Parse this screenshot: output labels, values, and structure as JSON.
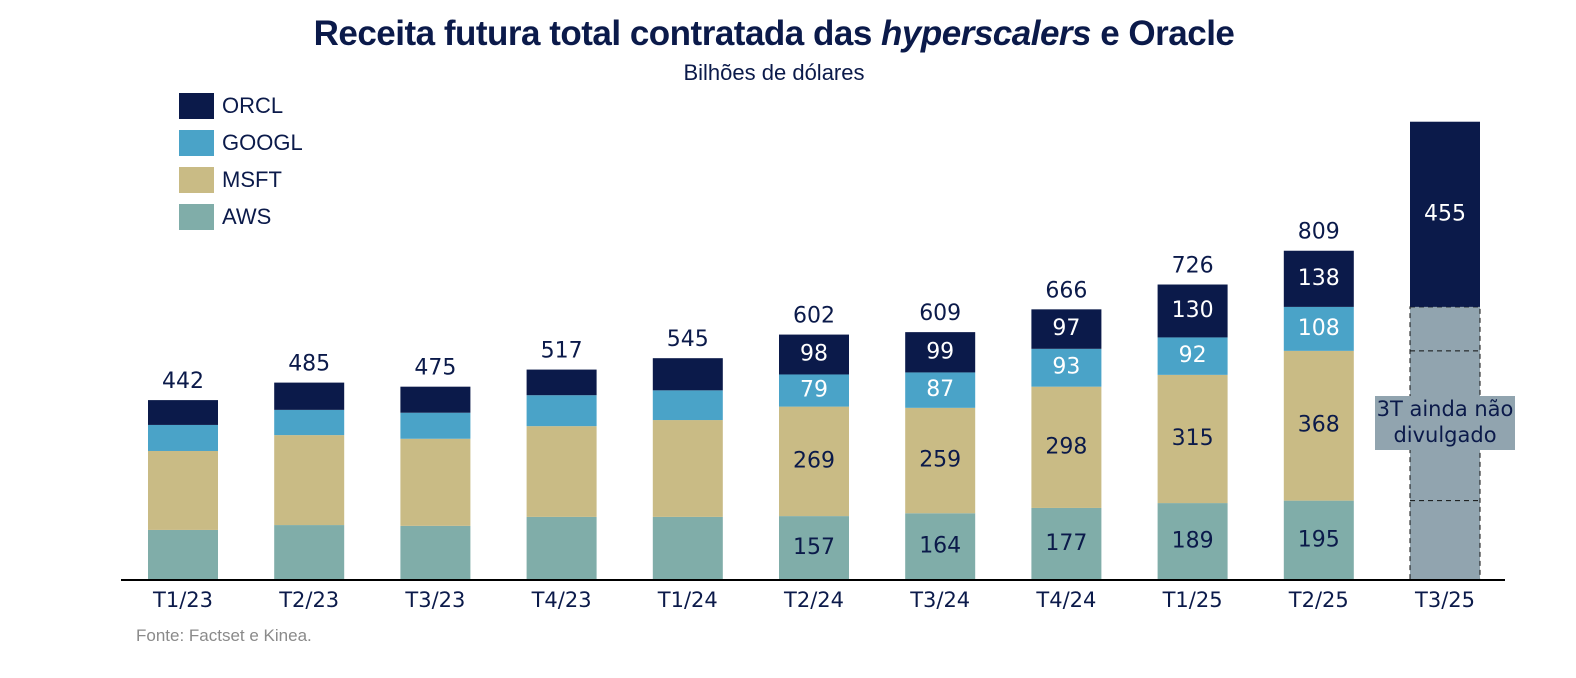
{
  "title_main": "Receita futura total contratada das ",
  "title_italic": "hyperscalers",
  "title_end": " e Oracle",
  "subtitle": "Bilhões de dólares",
  "footer": "Fonte: Factset e Kinea.",
  "colors": {
    "ORCL": "#0b1a4a",
    "GOOGL": "#4aa3c8",
    "MSFT": "#c9bb85",
    "AWS": "#80ada9",
    "placeholder": "#91a4af",
    "text": "#0b1a4a"
  },
  "chart_data": {
    "type": "bar",
    "stacked": true,
    "title": "Receita futura total contratada das hyperscalers e Oracle",
    "subtitle": "Bilhões de dólares",
    "xlabel": "",
    "ylabel": "",
    "ylim": [
      0,
      1140
    ],
    "grid": false,
    "legend_position": "top-left",
    "categories": [
      "T1/23",
      "T2/23",
      "T3/23",
      "T4/23",
      "T1/24",
      "T2/24",
      "T3/24",
      "T4/24",
      "T1/25",
      "T2/25",
      "T3/25"
    ],
    "series": [
      {
        "name": "AWS",
        "values": [
          123,
          135,
          133,
          155,
          155,
          157,
          164,
          177,
          189,
          195,
          null
        ],
        "labeled": [
          false,
          false,
          false,
          false,
          false,
          true,
          true,
          true,
          true,
          true,
          false
        ]
      },
      {
        "name": "MSFT",
        "values": [
          194,
          221,
          214,
          223,
          238,
          269,
          259,
          298,
          315,
          368,
          null
        ],
        "labeled": [
          false,
          false,
          false,
          false,
          false,
          true,
          true,
          true,
          true,
          true,
          false
        ]
      },
      {
        "name": "GOOGL",
        "values": [
          64,
          62,
          64,
          76,
          73,
          79,
          87,
          93,
          92,
          108,
          null
        ],
        "labeled": [
          false,
          false,
          false,
          false,
          false,
          true,
          true,
          true,
          true,
          true,
          false
        ]
      },
      {
        "name": "ORCL",
        "values": [
          61,
          67,
          64,
          63,
          79,
          98,
          99,
          97,
          130,
          138,
          455
        ],
        "labeled": [
          false,
          false,
          false,
          false,
          false,
          true,
          true,
          true,
          true,
          true,
          true
        ]
      }
    ],
    "totals": [
      442,
      485,
      475,
      517,
      545,
      602,
      609,
      666,
      726,
      809,
      null
    ],
    "placeholder": {
      "category": "T3/25",
      "segment_values_from": "T2/25",
      "segments": [
        195,
        368,
        108
      ],
      "note": "3T ainda não divulgado",
      "note_line1": "3T ainda não",
      "note_line2": "divulgado"
    },
    "legend": [
      "ORCL",
      "GOOGL",
      "MSFT",
      "AWS"
    ]
  }
}
